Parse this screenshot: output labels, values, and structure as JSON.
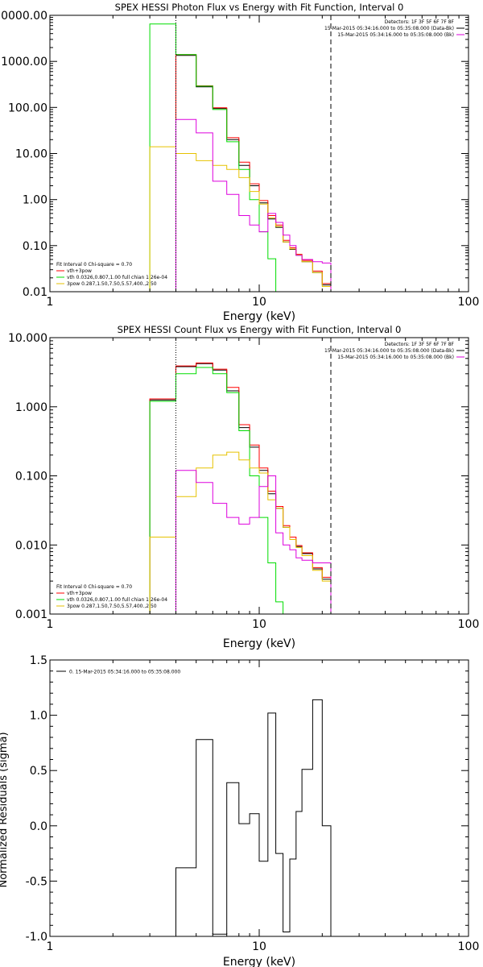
{
  "chart_data": [
    {
      "type": "line",
      "scale": "log-log",
      "title": "SPEX HESSI Photon Flux vs Energy with Fit Function, Interval 0",
      "xlabel": "Energy (keV)",
      "ylabel": "",
      "xlim": [
        1,
        100
      ],
      "ylim": [
        0.01,
        10000
      ],
      "x_ticks": [
        "1",
        "10",
        "100"
      ],
      "y_ticks": [
        "0.01",
        "0.10",
        "1.00",
        "10.00",
        "100.00",
        "1000.00",
        "10000.00"
      ],
      "legend_top_right": [
        "Detectors: 1F 3F 5F 6F 7F 8F",
        "15-Mar-2015 05:34:16.000 to 05:35:08.000 (Data-Bk)",
        "15-Mar-2015 05:34:16.000 to 05:35:08.000 (Bk)"
      ],
      "legend_bottom_left": [
        "Fit Interval 0   Chi-square = 0.70",
        "vth+3pow",
        "vth 0.0326,0.807,1.00  full chian 1.26e-04",
        "3pow 0.287,1.50,7.50,5.57,400.,2.50"
      ],
      "vlines": [
        {
          "x": 4.0,
          "style": "dotted"
        },
        {
          "x": 22.0,
          "style": "dashed"
        }
      ],
      "bin_edges": [
        3.0,
        4.0,
        5.0,
        6.0,
        7.0,
        8.0,
        9.0,
        10.0,
        11.0,
        12.0,
        13.0,
        14.0,
        15.0,
        16.0,
        18.0,
        20.0,
        22.0
      ],
      "series": [
        {
          "name": "Data-Bk",
          "color": "#000000",
          "values": [
            null,
            1350,
            280,
            95,
            20,
            5.5,
            2.0,
            0.85,
            0.38,
            0.25,
            0.12,
            0.083,
            0.062,
            0.045,
            0.026,
            0.014
          ]
        },
        {
          "name": "vth+3pow",
          "color": "#ff0000",
          "values": [
            null,
            1400,
            295,
            98,
            22,
            6.5,
            2.2,
            0.95,
            0.45,
            0.28,
            0.13,
            0.09,
            0.065,
            0.048,
            0.028,
            0.015
          ]
        },
        {
          "name": "vth",
          "color": "#00dd00",
          "values": [
            6500,
            1400,
            290,
            90,
            18,
            4.5,
            1.0,
            0.2,
            0.052,
            0.009,
            null,
            null,
            null,
            null,
            null,
            null
          ]
        },
        {
          "name": "3pow",
          "color": "#e6c200",
          "values": [
            14,
            10,
            7,
            5.5,
            4.5,
            3.0,
            1.5,
            0.8,
            0.4,
            0.26,
            0.12,
            0.085,
            0.063,
            0.045,
            0.026,
            0.013
          ]
        },
        {
          "name": "Bk",
          "color": "#dd00dd",
          "values": [
            null,
            55,
            28,
            2.5,
            1.3,
            0.45,
            0.28,
            0.2,
            0.5,
            0.32,
            0.17,
            0.1,
            0.062,
            0.05,
            0.045,
            0.042
          ]
        }
      ]
    },
    {
      "type": "line",
      "scale": "log-log",
      "title": "SPEX HESSI Count Flux vs Energy with Fit Function, Interval 0",
      "xlabel": "Energy (keV)",
      "ylabel": "",
      "xlim": [
        1,
        100
      ],
      "ylim": [
        0.001,
        10
      ],
      "x_ticks": [
        "1",
        "10",
        "100"
      ],
      "y_ticks": [
        "0.001",
        "0.010",
        "0.100",
        "1.000",
        "10.000"
      ],
      "legend_top_right": [
        "Detectors: 1F 3F 5F 6F 7F 8F",
        "15-Mar-2015 05:34:16.000 to 05:35:08.000 (Data-Bk)",
        "15-Mar-2015 05:34:16.000 to 05:35:08.000 (Bk)"
      ],
      "legend_bottom_left": [
        "Fit Interval 0   Chi-square = 0.70",
        "vth+3pow",
        "vth 0.0326,0.807,1.00  full chian 1.26e-04",
        "3pow 0.287,1.50,7.50,5.57,400.,2.50"
      ],
      "vlines": [
        {
          "x": 4.0,
          "style": "dotted"
        },
        {
          "x": 22.0,
          "style": "dashed"
        }
      ],
      "bin_edges": [
        3.0,
        4.0,
        5.0,
        6.0,
        7.0,
        8.0,
        9.0,
        10.0,
        11.0,
        12.0,
        13.0,
        14.0,
        15.0,
        16.0,
        18.0,
        20.0,
        22.0
      ],
      "series": [
        {
          "name": "Data-Bk",
          "color": "#000000",
          "values": [
            1.25,
            3.8,
            4.2,
            3.4,
            1.7,
            0.5,
            0.26,
            0.12,
            0.055,
            0.034,
            0.018,
            0.012,
            0.0095,
            0.0075,
            0.0045,
            0.0032
          ]
        },
        {
          "name": "vth+3pow",
          "color": "#ff0000",
          "values": [
            1.3,
            3.9,
            4.3,
            3.5,
            1.9,
            0.55,
            0.28,
            0.13,
            0.06,
            0.036,
            0.019,
            0.013,
            0.0098,
            0.0077,
            0.0047,
            0.0034
          ]
        },
        {
          "name": "vth",
          "color": "#00dd00",
          "values": [
            1.2,
            3.0,
            3.7,
            3.0,
            1.6,
            0.45,
            0.1,
            0.025,
            0.0055,
            0.0015,
            null,
            null,
            null,
            null,
            null,
            null
          ]
        },
        {
          "name": "3pow",
          "color": "#e6c200",
          "values": [
            0.013,
            0.05,
            0.13,
            0.2,
            0.22,
            0.17,
            0.13,
            0.11,
            0.045,
            0.034,
            0.018,
            0.012,
            0.0092,
            0.007,
            0.0043,
            0.003
          ]
        },
        {
          "name": "Bk",
          "color": "#dd00dd",
          "values": [
            null,
            0.12,
            0.08,
            0.04,
            0.025,
            0.02,
            0.025,
            0.07,
            0.1,
            0.015,
            0.01,
            0.0085,
            0.0065,
            0.006,
            0.0055,
            0.0055
          ]
        }
      ]
    },
    {
      "type": "line",
      "scale": "log-x",
      "title": "",
      "xlabel": "Energy (keV)",
      "ylabel": "Normalized Residuals (sigma)",
      "xlim": [
        1,
        100
      ],
      "ylim": [
        -1.0,
        1.5
      ],
      "x_ticks": [
        "1",
        "10",
        "100"
      ],
      "y_ticks": [
        "-1.0",
        "-0.5",
        "0.0",
        "0.5",
        "1.0",
        "1.5"
      ],
      "legend_top_left": "0. 15-Mar-2015 05:34:16.000 to 05:35:08.000",
      "bin_edges": [
        4.0,
        5.0,
        6.0,
        7.0,
        8.0,
        9.0,
        10.0,
        11.0,
        12.0,
        13.0,
        14.0,
        15.0,
        16.0,
        18.0,
        20.0,
        22.0
      ],
      "series": [
        {
          "name": "",
          "color": "#000000",
          "values": [
            -0.38,
            0.78,
            -0.98,
            0.39,
            0.02,
            0.11,
            -0.32,
            1.02,
            -0.25,
            -0.96,
            -0.3,
            0.13,
            0.51,
            1.14,
            0.0
          ]
        }
      ]
    }
  ]
}
